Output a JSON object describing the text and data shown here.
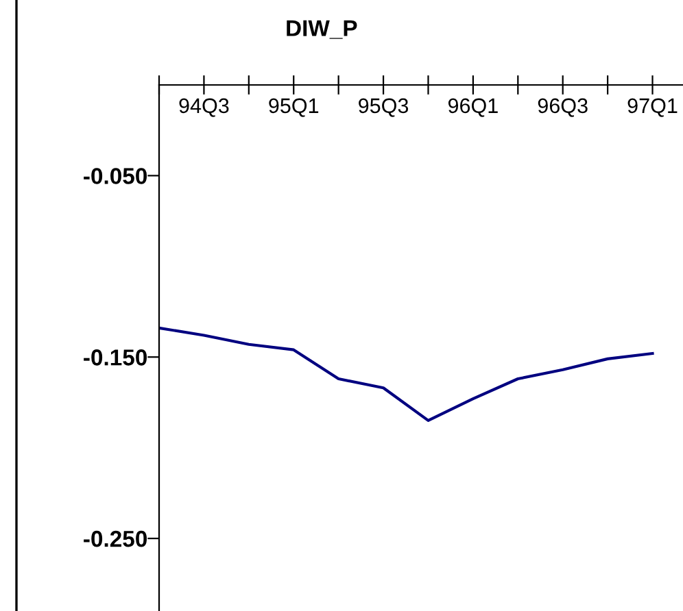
{
  "chart_data": {
    "type": "line",
    "title": "DIW_P",
    "categories": [
      null,
      "94Q3",
      null,
      "95Q1",
      null,
      "95Q3",
      null,
      "96Q1",
      null,
      "96Q3",
      null,
      "97Q1"
    ],
    "series": [
      {
        "color": "#000080",
        "values": [
          -0.134,
          -0.138,
          -0.143,
          -0.146,
          -0.162,
          -0.167,
          -0.185,
          -0.173,
          -0.162,
          -0.157,
          -0.151,
          -0.148
        ]
      }
    ],
    "ylim": [
      -0.29,
      0
    ],
    "yticks": [
      {
        "value": -0.05,
        "label": "-0.050"
      },
      {
        "value": -0.15,
        "label": "-0.150"
      },
      {
        "value": -0.25,
        "label": "-0.250"
      }
    ],
    "grid": false,
    "legend": false,
    "marker": "none",
    "line_style": "solid"
  }
}
